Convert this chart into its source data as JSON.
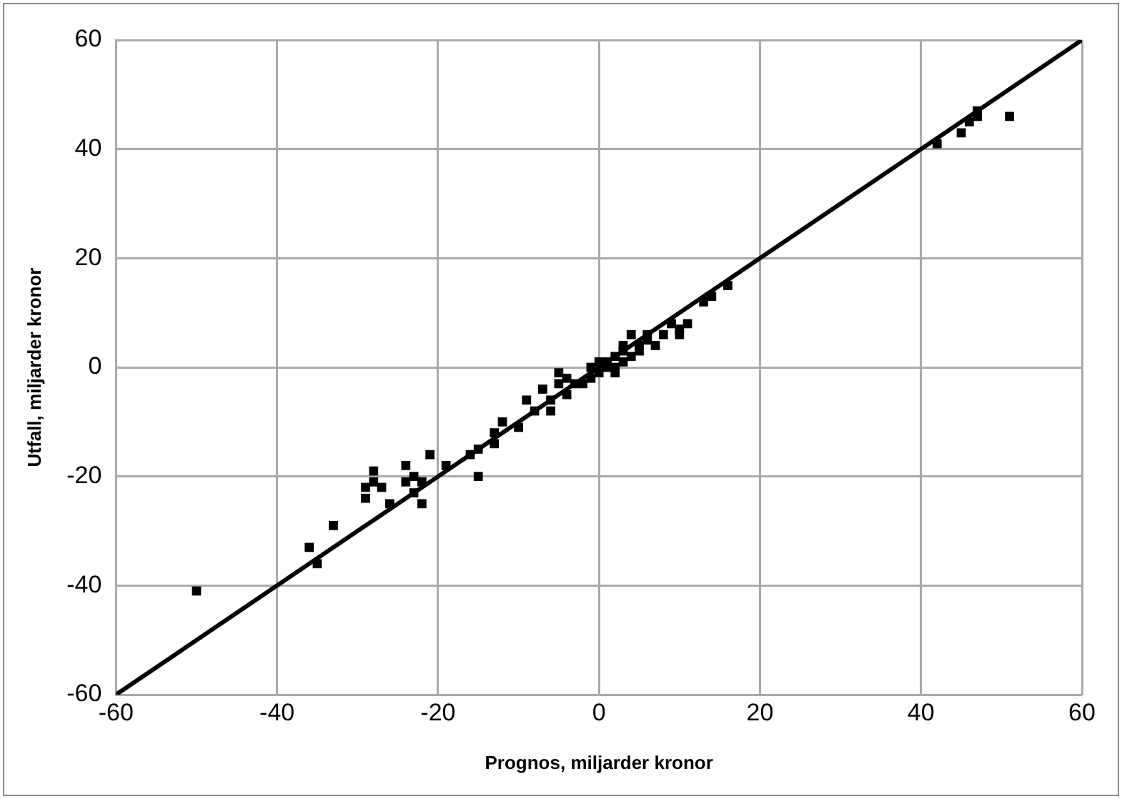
{
  "chart_data": {
    "type": "scatter",
    "xlabel": "Prognos, miljarder kronor",
    "ylabel": "Utfall, miljarder kronor",
    "xlim": [
      -60,
      60
    ],
    "xticks": [
      -60,
      -40,
      -20,
      0,
      20,
      40,
      60
    ],
    "ylim": [
      -60,
      60
    ],
    "yticks": [
      -60,
      -40,
      -20,
      0,
      20,
      40,
      60
    ],
    "grid": true,
    "legend": false,
    "series": [
      {
        "type": "scatter",
        "marker": "square",
        "color": "#000000",
        "x": [
          -50,
          -36,
          -35,
          -33,
          -29,
          -29,
          -28,
          -28,
          -27,
          -26,
          -24,
          -24,
          -23,
          -23,
          -22,
          -22,
          -21,
          -19,
          -16,
          -15,
          -15,
          -13,
          -13,
          -12,
          -10,
          -9,
          -8,
          -7,
          -6,
          -6,
          -5,
          -5,
          -4,
          -4,
          -3,
          -2,
          -1,
          -1,
          0,
          0,
          1,
          1,
          2,
          2,
          2,
          3,
          3,
          3,
          4,
          4,
          5,
          5,
          6,
          6,
          7,
          8,
          9,
          10,
          10,
          11,
          13,
          14,
          16,
          42,
          45,
          46,
          47,
          47,
          51
        ],
        "values": [
          -41,
          -33,
          -36,
          -29,
          -24,
          -22,
          -19,
          -21,
          -22,
          -25,
          -18,
          -21,
          -23,
          -20,
          -25,
          -21,
          -16,
          -18,
          -16,
          -20,
          -15,
          -14,
          -12,
          -10,
          -11,
          -6,
          -8,
          -4,
          -6,
          -8,
          -1,
          -3,
          -5,
          -2,
          -3,
          -3,
          -2,
          0,
          1,
          -1,
          0,
          1,
          -1,
          2,
          0,
          3,
          1,
          4,
          2,
          6,
          4,
          3,
          6,
          5,
          4,
          6,
          8,
          7,
          6,
          8,
          12,
          13,
          15,
          41,
          43,
          45,
          47,
          46,
          46
        ]
      },
      {
        "type": "line",
        "marker": "none",
        "line_style": "solid",
        "color": "#000000",
        "x": [
          -60,
          60
        ],
        "values": [
          -60,
          60
        ]
      }
    ]
  }
}
